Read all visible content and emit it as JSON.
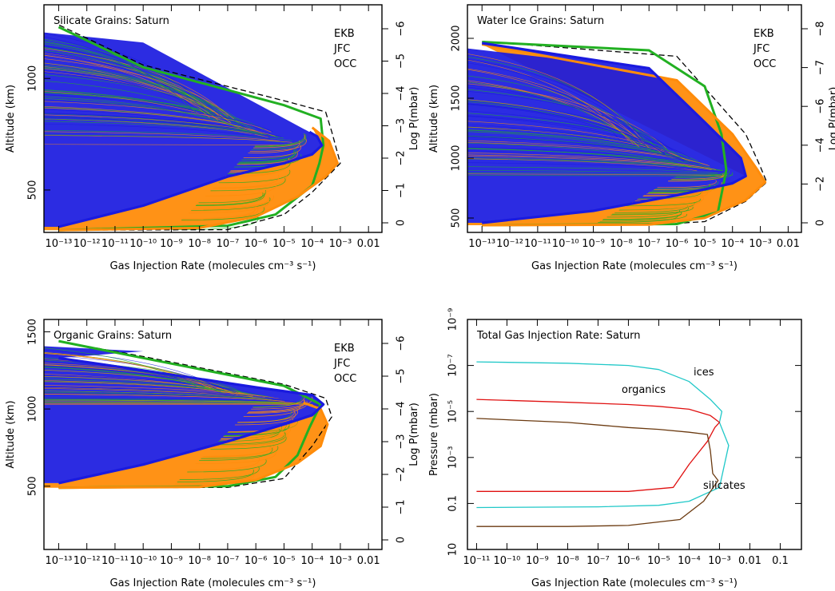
{
  "figure_colors": {
    "EKB": "#22b022",
    "JFC": "#ff8c0a",
    "OCC": "#1a1adf",
    "envelope": "#000000",
    "ices": "#20c8c8",
    "organics": "#e01010",
    "silicates": "#6b3a10"
  },
  "chart_data": [
    {
      "type": "line",
      "title": "Silicate Grains: Saturn",
      "xlabel": "Gas Injection Rate (molecules cm⁻³ s⁻¹)",
      "ylabel": "Altitude (km)",
      "y2label": "Log P(mbar)",
      "xscale": "log",
      "xlim": [
        3e-14,
        0.03
      ],
      "ylim": [
        310,
        1330
      ],
      "xticks": [
        "10⁻¹³",
        "10⁻¹²",
        "10⁻¹¹",
        "10⁻¹⁰",
        "10⁻⁹",
        "10⁻⁸",
        "10⁻⁷",
        "10⁻⁶",
        "10⁻⁵",
        "10⁻⁴",
        "10⁻³",
        "0.01"
      ],
      "yticks": [
        "500",
        "1000"
      ],
      "y2ticks": [
        "0",
        "−1",
        "−2",
        "−3",
        "−4",
        "−5",
        "−6"
      ],
      "legend": [
        "EKB",
        "JFC",
        "OCC"
      ],
      "legend_position": "top-right",
      "series": [
        {
          "name": "OCC",
          "x": [
            1e-13,
            1e-10,
            1e-07,
            1e-05,
            0.0001,
            0.00022,
            0.00015,
            8e-05
          ],
          "y": [
            335,
            430,
            560,
            620,
            660,
            700,
            740,
            760
          ]
        },
        {
          "name": "JFC",
          "x": [
            1e-13,
            1e-08,
            1e-06,
            3e-05,
            0.0003,
            0.0008,
            0.0004,
            0.0001
          ],
          "y": [
            320,
            330,
            380,
            470,
            560,
            620,
            720,
            780
          ]
        },
        {
          "name": "EKB",
          "x": [
            1e-13,
            1e-07,
            5e-06,
            0.0001,
            0.00018,
            0.00025,
            0.0002,
            1e-05,
            1e-10,
            1e-13
          ],
          "y": [
            320,
            340,
            390,
            520,
            620,
            700,
            820,
            880,
            1050,
            1230
          ]
        },
        {
          "name": "envelope",
          "x": [
            1e-13,
            1e-07,
            1e-05,
            0.0001,
            0.001,
            0.0005,
            0.0003,
            1e-05,
            1e-10,
            1e-13
          ],
          "y": [
            320,
            322,
            390,
            490,
            620,
            760,
            850,
            900,
            1060,
            1240
          ]
        }
      ]
    },
    {
      "type": "line",
      "title": "Water Ice Grains: Saturn",
      "xlabel": "Gas Injection Rate (molecules cm⁻³ s⁻¹)",
      "ylabel": "Altitude (km)",
      "y2label": "Log P(mbar)",
      "xscale": "log",
      "xlim": [
        3e-14,
        0.03
      ],
      "ylim": [
        380,
        2280
      ],
      "xticks": [
        "10⁻¹³",
        "10⁻¹²",
        "10⁻¹¹",
        "10⁻¹⁰",
        "10⁻⁹",
        "10⁻⁸",
        "10⁻⁷",
        "10⁻⁶",
        "10⁻⁵",
        "10⁻⁴",
        "10⁻³",
        "0.01"
      ],
      "yticks": [
        "500",
        "1000",
        "1500",
        "2000"
      ],
      "y2ticks": [
        "0",
        "−2",
        "−4",
        "−6",
        "−7",
        "−8"
      ],
      "legend": [
        "EKB",
        "JFC",
        "OCC"
      ],
      "legend_position": "top-right",
      "series": [
        {
          "name": "OCC",
          "x": [
            1e-13,
            1e-09,
            1e-06,
            0.0001,
            0.0003,
            0.0002,
            1e-05,
            1e-07,
            1e-13
          ],
          "y": [
            460,
            560,
            690,
            790,
            850,
            1000,
            1300,
            1750,
            1960
          ]
        },
        {
          "name": "JFC",
          "x": [
            1e-13,
            1e-07,
            1e-05,
            0.0003,
            0.0015,
            0.0008,
            0.0001,
            1e-06,
            1e-13
          ],
          "y": [
            440,
            445,
            500,
            650,
            800,
            900,
            1200,
            1650,
            1950
          ]
        },
        {
          "name": "EKB",
          "x": [
            1e-13,
            1e-06,
            3e-05,
            6e-05,
            4e-05,
            1e-05,
            1e-07,
            1e-13
          ],
          "y": [
            440,
            450,
            550,
            900,
            1200,
            1600,
            1900,
            1970
          ]
        },
        {
          "name": "envelope",
          "x": [
            1e-13,
            1e-07,
            1e-05,
            0.0003,
            0.0017,
            0.001,
            0.0003,
            1e-06,
            1e-13
          ],
          "y": [
            440,
            442,
            470,
            640,
            800,
            930,
            1200,
            1850,
            1975
          ]
        }
      ]
    },
    {
      "type": "line",
      "title": "Organic Grains: Saturn",
      "xlabel": "Gas Injection Rate (molecules cm⁻³ s⁻¹)",
      "ylabel": "Altitude (km)",
      "y2label": "Log P(mbar)",
      "xscale": "log",
      "xlim": [
        3e-14,
        0.03
      ],
      "ylim": [
        90,
        1580
      ],
      "xticks": [
        "10⁻¹³",
        "10⁻¹²",
        "10⁻¹¹",
        "10⁻¹⁰",
        "10⁻⁹",
        "10⁻⁸",
        "10⁻⁷",
        "10⁻⁶",
        "10⁻⁵",
        "10⁻⁴",
        "10⁻³",
        "0.01"
      ],
      "yticks": [
        "500",
        "1000",
        "1500"
      ],
      "y2ticks": [
        "0",
        "−1",
        "−2",
        "−3",
        "−4",
        "−5",
        "−6"
      ],
      "legend": [
        "EKB",
        "JFC",
        "OCC"
      ],
      "legend_position": "top-right",
      "series": [
        {
          "name": "OCC",
          "x": [
            1e-13,
            1e-10,
            1e-07,
            1e-05,
            0.0001,
            0.00025,
            0.0001,
            1e-06,
            1e-10,
            1e-13
          ],
          "y": [
            520,
            640,
            790,
            900,
            960,
            1030,
            1090,
            1140,
            1250,
            1330
          ]
        },
        {
          "name": "JFC",
          "x": [
            1e-13,
            1e-08,
            1e-06,
            3e-05,
            0.0002,
            0.00035,
            0.0002,
            5e-05
          ],
          "y": [
            490,
            495,
            540,
            650,
            760,
            900,
            1000,
            1040
          ]
        },
        {
          "name": "EKB",
          "x": [
            1e-13,
            1e-07,
            5e-06,
            3e-05,
            8e-05,
            0.0002,
            1e-05,
            1e-10,
            1e-13
          ],
          "y": [
            490,
            500,
            560,
            700,
            880,
            1030,
            1150,
            1330,
            1440
          ]
        },
        {
          "name": "envelope",
          "x": [
            1e-13,
            1e-07,
            1e-05,
            0.0001,
            0.0005,
            0.0003,
            1e-05,
            1e-10,
            1e-13
          ],
          "y": [
            490,
            492,
            550,
            760,
            950,
            1070,
            1160,
            1340,
            1440
          ]
        }
      ]
    },
    {
      "type": "line",
      "title": "Total Gas Injection Rate: Saturn",
      "xlabel": "Gas Injection Rate (molecules cm⁻³ s⁻¹)",
      "ylabel": "Pressure (mbar)",
      "xscale": "log",
      "yscale": "log",
      "y_inverted": true,
      "xlim": [
        5e-12,
        0.5
      ],
      "ylim": [
        10,
        1e-09
      ],
      "xticks": [
        "10⁻¹¹",
        "10⁻¹⁰",
        "10⁻⁹",
        "10⁻⁸",
        "10⁻⁷",
        "10⁻⁶",
        "10⁻⁵",
        "10⁻⁴",
        "10⁻³",
        "0.01",
        "0.1"
      ],
      "yticks": [
        "10⁻⁹",
        "10⁻⁷",
        "10⁻⁵",
        "10⁻³",
        "0.1",
        "10"
      ],
      "series": [
        {
          "name": "ices",
          "x": [
            1e-11,
            1e-08,
            1e-06,
            1e-05,
            0.0001,
            0.0005,
            0.0012,
            0.001,
            0.002,
            0.001,
            0.0001,
            1e-05,
            1e-07,
            1e-11
          ],
          "y": [
            7e-08,
            8e-08,
            1e-07,
            1.5e-07,
            5e-07,
            3e-06,
            1e-05,
            3e-05,
            0.0003,
            0.02,
            0.08,
            0.12,
            0.14,
            0.15
          ]
        },
        {
          "name": "organics",
          "x": [
            1e-11,
            1e-08,
            1e-06,
            1e-05,
            0.0001,
            0.0005,
            0.001,
            0.0007,
            0.0004,
            0.0001,
            3e-05,
            1e-06,
            1e-08,
            1e-11
          ],
          "y": [
            3e-06,
            4e-06,
            5e-06,
            6e-06,
            8e-06,
            1.5e-05,
            3e-05,
            5e-05,
            0.0002,
            0.002,
            0.02,
            0.03,
            0.03,
            0.03
          ]
        },
        {
          "name": "silicates",
          "x": [
            1e-11,
            1e-08,
            1e-06,
            1e-05,
            0.0001,
            0.0004,
            0.0005,
            0.0006,
            0.0009,
            0.0003,
            5e-05,
            1e-06,
            1e-08,
            1e-11
          ],
          "y": [
            2e-05,
            3e-05,
            5e-05,
            6e-05,
            8e-05,
            0.0001,
            0.0005,
            0.005,
            0.01,
            0.08,
            0.5,
            0.9,
            1,
            1
          ]
        }
      ],
      "annotations": [
        "ices",
        "organics",
        "silicates"
      ]
    }
  ]
}
